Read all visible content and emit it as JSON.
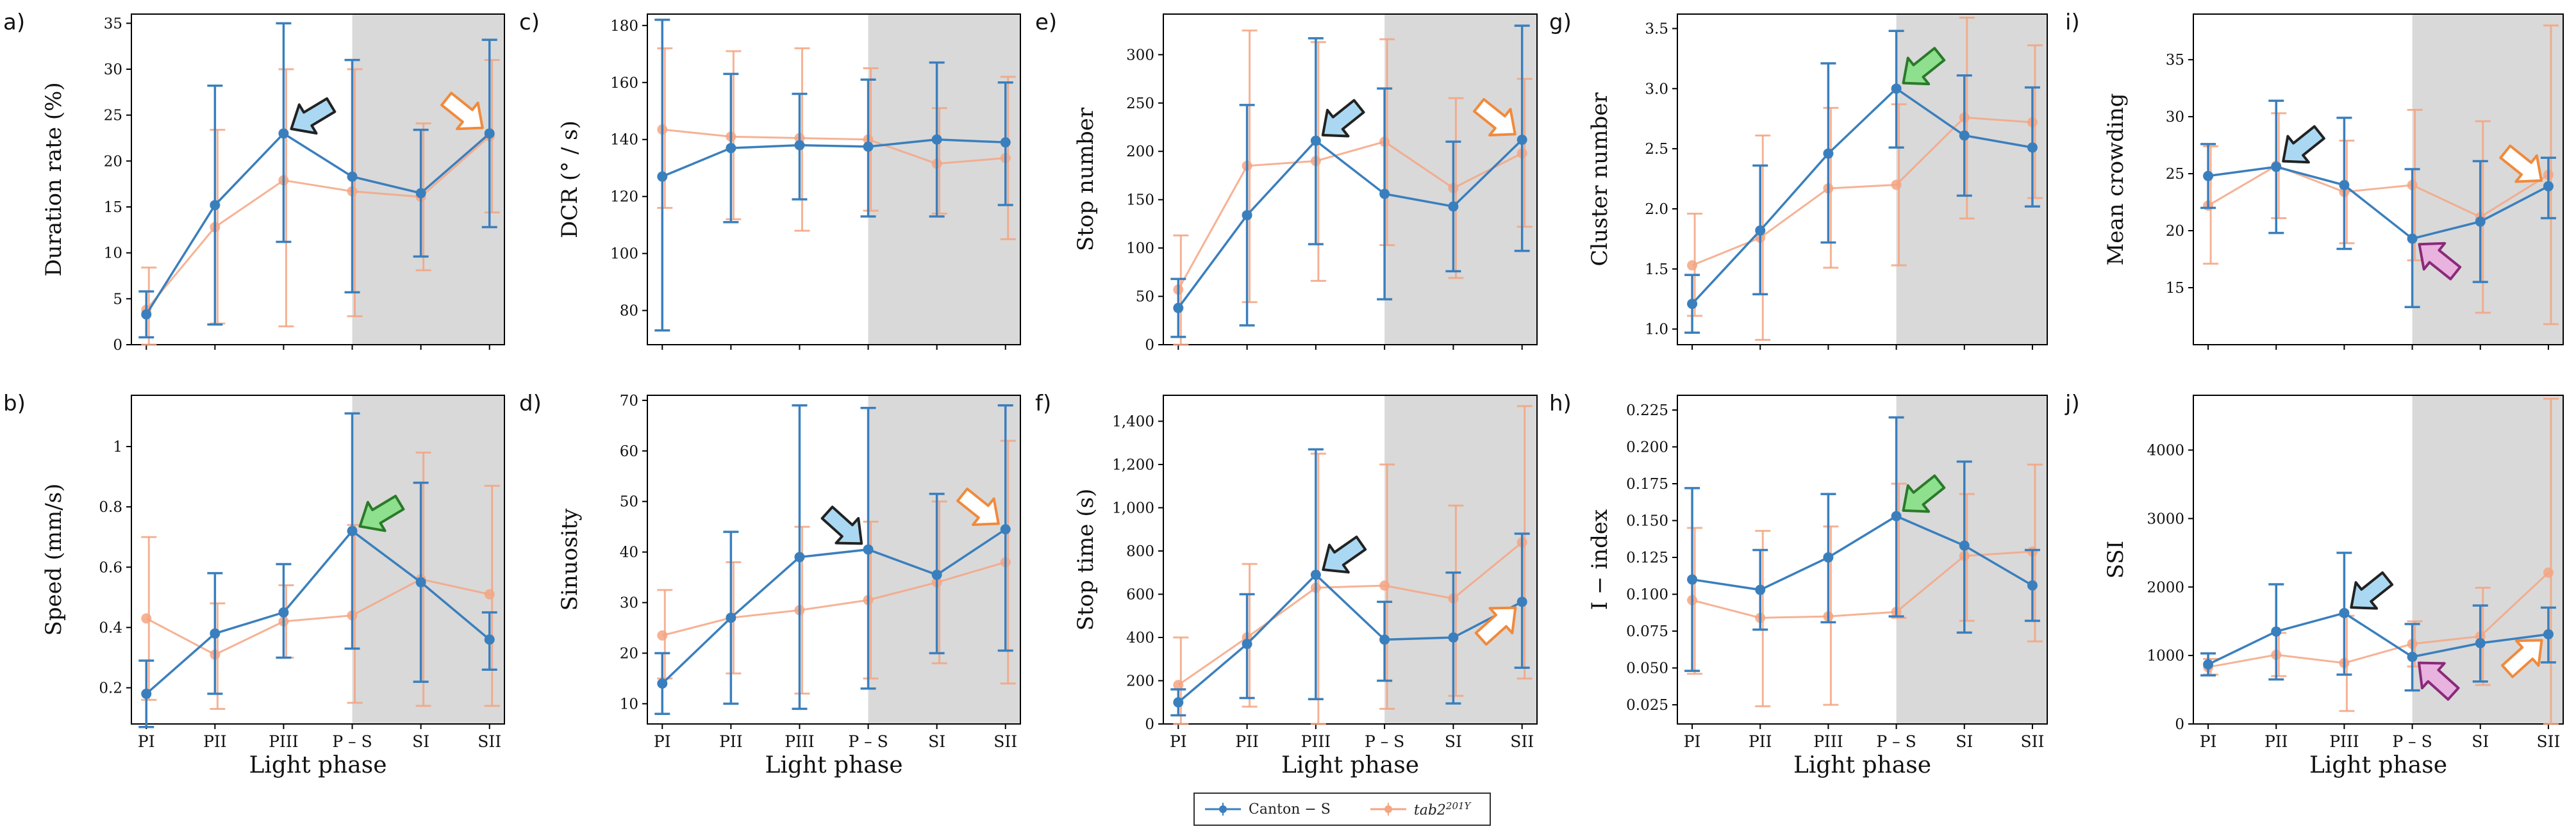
{
  "legend": {
    "series1_label": "Canton − S",
    "series2_label": "tab2^201Y",
    "series2_base": "tab2",
    "series2_sup": "201Y"
  },
  "colors": {
    "canton": "#3a7fbd",
    "tab2": "#f4a582",
    "shade": "#d9d9d9",
    "arrow_blue": "#aad8f2",
    "arrow_orange": "#f08a3c",
    "arrow_green": "#8ee08e",
    "arrow_purple": "#c94fb2"
  },
  "chart_data": [
    {
      "panel": "a)",
      "type": "line",
      "ylabel": "Duration rate (%)",
      "xlabel": "",
      "ylim": [
        0,
        36
      ],
      "yticks": [
        0,
        5,
        10,
        15,
        20,
        25,
        30,
        35
      ],
      "categories": [
        "PI",
        "PII",
        "PIII",
        "P – S",
        "SI",
        "SII"
      ],
      "shaded_from": "P – S",
      "series": [
        {
          "name": "Canton − S",
          "values": [
            3.3,
            15.2,
            23.0,
            18.3,
            16.5,
            23.0
          ],
          "err_low": [
            0.8,
            2.2,
            11.2,
            5.7,
            9.6,
            12.8
          ],
          "err_high": [
            5.8,
            28.2,
            35.0,
            31.0,
            23.4,
            33.2
          ]
        },
        {
          "name": "tab2^201Y",
          "values": [
            3.8,
            12.8,
            17.9,
            16.7,
            16.1,
            22.7
          ],
          "err_low": [
            0.0,
            2.3,
            2.0,
            3.1,
            8.1,
            14.4
          ],
          "err_high": [
            8.4,
            23.4,
            30.0,
            30.0,
            24.1,
            31.0
          ]
        }
      ],
      "arrows": [
        {
          "color": "blue",
          "at": "PIII"
        },
        {
          "color": "orange",
          "at": "SII"
        }
      ]
    },
    {
      "panel": "b)",
      "type": "line",
      "ylabel": "Speed (mm/s)",
      "xlabel": "Light phase",
      "ylim": [
        0.08,
        1.17
      ],
      "yticks": [
        0.2,
        0.4,
        0.6,
        0.8,
        1.0
      ],
      "categories": [
        "PI",
        "PII",
        "PIII",
        "P – S",
        "SI",
        "SII"
      ],
      "shaded_from": "P – S",
      "series": [
        {
          "name": "Canton − S",
          "values": [
            0.18,
            0.38,
            0.45,
            0.72,
            0.55,
            0.36
          ],
          "err_low": [
            0.07,
            0.18,
            0.3,
            0.33,
            0.22,
            0.26
          ],
          "err_high": [
            0.29,
            0.58,
            0.61,
            1.11,
            0.88,
            0.45
          ]
        },
        {
          "name": "tab2^201Y",
          "values": [
            0.43,
            0.31,
            0.42,
            0.44,
            0.56,
            0.51
          ],
          "err_low": [
            0.16,
            0.13,
            0.3,
            0.15,
            0.14,
            0.14
          ],
          "err_high": [
            0.7,
            0.48,
            0.54,
            0.74,
            0.98,
            0.87
          ]
        }
      ],
      "arrows": [
        {
          "color": "green",
          "at": "P – S"
        }
      ]
    },
    {
      "panel": "c)",
      "type": "line",
      "ylabel": "DCR (° / s)",
      "xlabel": "",
      "ylim": [
        68,
        184
      ],
      "yticks": [
        80,
        100,
        120,
        140,
        160,
        180
      ],
      "categories": [
        "PI",
        "PII",
        "PIII",
        "P – S",
        "SI",
        "SII"
      ],
      "shaded_from": "P – S",
      "series": [
        {
          "name": "Canton − S",
          "values": [
            127,
            137,
            138,
            137.5,
            140,
            139
          ],
          "err_low": [
            73,
            111,
            119,
            113,
            113,
            117
          ],
          "err_high": [
            182,
            163,
            156,
            161,
            167,
            160
          ]
        },
        {
          "name": "tab2^201Y",
          "values": [
            143.5,
            141,
            140.5,
            140,
            131.5,
            133.5
          ],
          "err_low": [
            116,
            112,
            108,
            115,
            114,
            105
          ],
          "err_high": [
            172,
            171,
            172,
            165,
            151,
            162
          ]
        }
      ],
      "arrows": []
    },
    {
      "panel": "d)",
      "type": "line",
      "ylabel": "Sinuosity",
      "xlabel": "Light phase",
      "ylim": [
        6,
        71
      ],
      "yticks": [
        10,
        20,
        30,
        40,
        50,
        60,
        70
      ],
      "categories": [
        "PI",
        "PII",
        "PIII",
        "P – S",
        "SI",
        "SII"
      ],
      "shaded_from": "P – S",
      "series": [
        {
          "name": "Canton − S",
          "values": [
            14,
            27,
            39,
            40.5,
            35.5,
            44.5
          ],
          "err_low": [
            8,
            10,
            9,
            13,
            20,
            20.5
          ],
          "err_high": [
            20,
            44,
            69,
            68.5,
            51.5,
            69
          ]
        },
        {
          "name": "tab2^201Y",
          "values": [
            23.5,
            27,
            28.5,
            30.5,
            34,
            38
          ],
          "err_low": [
            15,
            16,
            12,
            15,
            18,
            14
          ],
          "err_high": [
            32.5,
            38,
            45,
            46,
            50,
            62
          ]
        }
      ],
      "arrows": [
        {
          "color": "blue",
          "at": "P – S"
        },
        {
          "color": "orange",
          "at": "SII"
        }
      ]
    },
    {
      "panel": "e)",
      "type": "line",
      "ylabel": "Stop number",
      "xlabel": "",
      "ylim": [
        0,
        342
      ],
      "yticks": [
        0,
        50,
        100,
        150,
        200,
        250,
        300
      ],
      "categories": [
        "PI",
        "PII",
        "PIII",
        "P – S",
        "SI",
        "SII"
      ],
      "shaded_from": "P – S",
      "series": [
        {
          "name": "Canton − S",
          "values": [
            38,
            134,
            211,
            156,
            143,
            212
          ],
          "err_low": [
            8,
            20,
            104,
            47,
            76,
            97
          ],
          "err_high": [
            68,
            248,
            317,
            265,
            210,
            330
          ]
        },
        {
          "name": "tab2^201Y",
          "values": [
            57,
            185,
            190,
            210,
            162,
            198
          ],
          "err_low": [
            0,
            44,
            66,
            103,
            69,
            122
          ],
          "err_high": [
            113,
            325,
            313,
            316,
            255,
            275
          ]
        }
      ],
      "arrows": [
        {
          "color": "blue",
          "at": "PIII"
        },
        {
          "color": "orange",
          "at": "SII"
        }
      ]
    },
    {
      "panel": "f)",
      "type": "line",
      "ylabel": "Stop time (s)",
      "xlabel": "Light phase",
      "ylim": [
        0,
        1520
      ],
      "yticks": [
        0,
        200,
        400,
        600,
        800,
        1000,
        1200,
        1400
      ],
      "ytick_labels": [
        "0",
        "200",
        "400",
        "600",
        "800",
        "1,000",
        "1,200",
        "1,400"
      ],
      "categories": [
        "PI",
        "PII",
        "PIII",
        "P – S",
        "SI",
        "SII"
      ],
      "shaded_from": "P – S",
      "series": [
        {
          "name": "Canton − S",
          "values": [
            100,
            370,
            690,
            390,
            400,
            565
          ],
          "err_low": [
            40,
            120,
            115,
            200,
            95,
            260
          ],
          "err_high": [
            160,
            600,
            1270,
            565,
            700,
            880
          ]
        },
        {
          "name": "tab2^201Y",
          "values": [
            180,
            400,
            630,
            640,
            580,
            840
          ],
          "err_low": [
            0,
            80,
            0,
            70,
            130,
            210
          ],
          "err_high": [
            400,
            740,
            1250,
            1200,
            1010,
            1470
          ]
        }
      ],
      "arrows": [
        {
          "color": "blue",
          "at": "PIII"
        },
        {
          "color": "orange",
          "at": "SII"
        }
      ]
    },
    {
      "panel": "g)",
      "type": "line",
      "ylabel": "Cluster number",
      "xlabel": "",
      "ylim": [
        0.87,
        3.62
      ],
      "yticks": [
        1.0,
        1.5,
        2.0,
        2.5,
        3.0,
        3.5
      ],
      "ytick_labels": [
        "1.0",
        "1.5",
        "2.0",
        "2.5",
        "3.0",
        "3.5"
      ],
      "categories": [
        "PI",
        "PII",
        "PIII",
        "P – S",
        "SI",
        "SII"
      ],
      "shaded_from": "P – S",
      "series": [
        {
          "name": "Canton − S",
          "values": [
            1.21,
            1.82,
            2.46,
            3.0,
            2.61,
            2.51
          ],
          "err_low": [
            0.97,
            1.29,
            1.72,
            2.51,
            2.11,
            2.02
          ],
          "err_high": [
            1.45,
            2.36,
            3.21,
            3.48,
            3.11,
            3.01
          ]
        },
        {
          "name": "tab2^201Y",
          "values": [
            1.53,
            1.76,
            2.17,
            2.2,
            2.76,
            2.72
          ],
          "err_low": [
            1.11,
            0.91,
            1.51,
            1.53,
            1.92,
            2.09
          ],
          "err_high": [
            1.96,
            2.61,
            2.84,
            2.87,
            3.59,
            3.36
          ]
        }
      ],
      "arrows": [
        {
          "color": "green",
          "at": "P – S"
        }
      ]
    },
    {
      "panel": "h)",
      "type": "line",
      "ylabel": "I − index",
      "xlabel": "Light phase",
      "ylim": [
        0.012,
        0.235
      ],
      "yticks": [
        0.025,
        0.05,
        0.075,
        0.1,
        0.125,
        0.15,
        0.175,
        0.2,
        0.225
      ],
      "ytick_labels": [
        "0.025",
        "0.050",
        "0.075",
        "0.100",
        "0.125",
        "0.150",
        "0.175",
        "0.200",
        "0.225"
      ],
      "categories": [
        "PI",
        "PII",
        "PIII",
        "P – S",
        "SI",
        "SII"
      ],
      "shaded_from": "P – S",
      "series": [
        {
          "name": "Canton − S",
          "values": [
            0.11,
            0.103,
            0.125,
            0.153,
            0.133,
            0.106
          ],
          "err_low": [
            0.048,
            0.076,
            0.081,
            0.085,
            0.074,
            0.082
          ],
          "err_high": [
            0.172,
            0.13,
            0.168,
            0.22,
            0.19,
            0.13
          ]
        },
        {
          "name": "tab2^201Y",
          "values": [
            0.096,
            0.084,
            0.085,
            0.088,
            0.126,
            0.129
          ],
          "err_low": [
            0.046,
            0.024,
            0.025,
            0.084,
            0.082,
            0.068
          ],
          "err_high": [
            0.145,
            0.143,
            0.146,
            0.175,
            0.168,
            0.188
          ]
        }
      ],
      "arrows": [
        {
          "color": "green",
          "at": "P – S"
        }
      ]
    },
    {
      "panel": "i)",
      "type": "line",
      "ylabel": "Mean crowding",
      "xlabel": "",
      "ylim": [
        10,
        39
      ],
      "yticks": [
        15,
        20,
        25,
        30,
        35
      ],
      "categories": [
        "PI",
        "PII",
        "PIII",
        "P – S",
        "SI",
        "SII"
      ],
      "shaded_from": "P – S",
      "series": [
        {
          "name": "Canton − S",
          "values": [
            24.8,
            25.6,
            24.0,
            19.3,
            20.8,
            23.9
          ],
          "err_low": [
            22.0,
            19.8,
            18.4,
            13.3,
            15.5,
            21.1
          ],
          "err_high": [
            27.6,
            31.4,
            29.9,
            25.4,
            26.1,
            26.4
          ]
        },
        {
          "name": "tab2^201Y",
          "values": [
            22.2,
            25.7,
            23.4,
            24.0,
            21.2,
            24.9
          ],
          "err_low": [
            17.1,
            21.1,
            18.9,
            17.4,
            12.8,
            11.8
          ],
          "err_high": [
            27.4,
            30.3,
            27.9,
            30.6,
            29.6,
            38.0
          ]
        }
      ],
      "arrows": [
        {
          "color": "blue",
          "at": "PII"
        },
        {
          "color": "purple",
          "at": "P – S"
        },
        {
          "color": "orange",
          "at": "SII"
        }
      ]
    },
    {
      "panel": "j)",
      "type": "line",
      "ylabel": "SSI",
      "xlabel": "Light phase",
      "ylim": [
        0,
        4800
      ],
      "yticks": [
        0,
        1000,
        2000,
        3000,
        4000
      ],
      "categories": [
        "PI",
        "PII",
        "PIII",
        "P – S",
        "SI",
        "SII"
      ],
      "shaded_from": "P – S",
      "series": [
        {
          "name": "Canton − S",
          "values": [
            870,
            1350,
            1620,
            980,
            1180,
            1310
          ],
          "err_low": [
            710,
            650,
            720,
            490,
            620,
            900
          ],
          "err_high": [
            1030,
            2040,
            2500,
            1460,
            1730,
            1700
          ]
        },
        {
          "name": "tab2^201Y",
          "values": [
            830,
            1010,
            890,
            1170,
            1280,
            2210
          ],
          "err_low": [
            720,
            700,
            190,
            840,
            570,
            0
          ],
          "err_high": [
            950,
            1330,
            1580,
            1500,
            1990,
            4750
          ]
        }
      ],
      "arrows": [
        {
          "color": "blue",
          "at": "PIII"
        },
        {
          "color": "purple",
          "at": "P – S"
        },
        {
          "color": "orange",
          "at": "SII"
        }
      ]
    }
  ]
}
